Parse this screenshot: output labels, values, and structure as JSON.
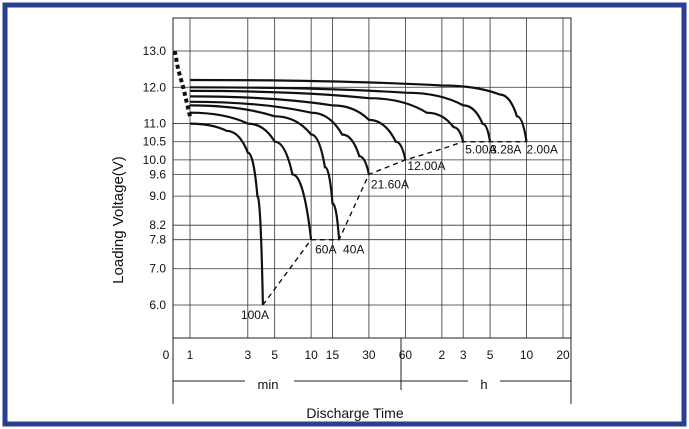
{
  "chart_data": {
    "type": "line",
    "title": "",
    "xlabel": "Discharge Time",
    "ylabel": "Loading  Voltage(V)",
    "x_unit_min": "min",
    "x_unit_h": "h",
    "x_ticks": [
      {
        "label": "0",
        "minutes": 0
      },
      {
        "label": "1",
        "minutes": 1
      },
      {
        "label": "3",
        "minutes": 3
      },
      {
        "label": "5",
        "minutes": 5
      },
      {
        "label": "10",
        "minutes": 10
      },
      {
        "label": "15",
        "minutes": 15
      },
      {
        "label": "30",
        "minutes": 30
      },
      {
        "label": "60",
        "minutes": 60
      },
      {
        "label": "2",
        "minutes": 120
      },
      {
        "label": "3",
        "minutes": 180
      },
      {
        "label": "5",
        "minutes": 300
      },
      {
        "label": "10",
        "minutes": 600
      },
      {
        "label": "20",
        "minutes": 1200
      }
    ],
    "y_ticks": [
      "13.0",
      "12.0",
      "11.0",
      "10.5",
      "10.0",
      "9.6",
      "9.0",
      "8.2",
      "7.8",
      "7.0",
      "6.0"
    ],
    "ylim": [
      5.0,
      13.3
    ],
    "series": [
      {
        "name": "100A",
        "points": [
          [
            1,
            11.0
          ],
          [
            2,
            10.8
          ],
          [
            3,
            10.2
          ],
          [
            3.6,
            9.0
          ],
          [
            4.0,
            6.0
          ]
        ]
      },
      {
        "name": "60A",
        "points": [
          [
            1,
            11.3
          ],
          [
            3,
            11.0
          ],
          [
            5,
            10.5
          ],
          [
            7,
            9.6
          ],
          [
            10,
            7.8
          ]
        ]
      },
      {
        "name": "40A",
        "points": [
          [
            1,
            11.5
          ],
          [
            5,
            11.2
          ],
          [
            10,
            10.7
          ],
          [
            13,
            9.8
          ],
          [
            15,
            8.8
          ],
          [
            17,
            7.8
          ]
        ]
      },
      {
        "name": "21.60A",
        "points": [
          [
            1,
            11.6
          ],
          [
            10,
            11.3
          ],
          [
            18,
            10.7
          ],
          [
            25,
            10.1
          ],
          [
            30,
            9.6
          ]
        ]
      },
      {
        "name": "12.00A",
        "points": [
          [
            1,
            11.75
          ],
          [
            15,
            11.5
          ],
          [
            30,
            11.1
          ],
          [
            50,
            10.5
          ],
          [
            60,
            10.0
          ]
        ]
      },
      {
        "name": "5.00A",
        "points": [
          [
            1,
            11.9
          ],
          [
            30,
            11.7
          ],
          [
            90,
            11.3
          ],
          [
            150,
            10.9
          ],
          [
            180,
            10.5
          ]
        ]
      },
      {
        "name": "3.28A",
        "points": [
          [
            1,
            12.0
          ],
          [
            60,
            11.85
          ],
          [
            180,
            11.5
          ],
          [
            260,
            11.0
          ],
          [
            300,
            10.5
          ]
        ]
      },
      {
        "name": "2.00A",
        "points": [
          [
            1,
            12.2
          ],
          [
            120,
            12.05
          ],
          [
            360,
            11.8
          ],
          [
            500,
            11.2
          ],
          [
            600,
            10.5
          ]
        ]
      }
    ],
    "end_voltage_line": [
      [
        4.0,
        6.0
      ],
      [
        10,
        7.8
      ],
      [
        17,
        7.8
      ],
      [
        30,
        9.6
      ],
      [
        60,
        10.0
      ],
      [
        120,
        10.3
      ],
      [
        180,
        10.5
      ],
      [
        600,
        10.5
      ]
    ],
    "initial_dashes": [
      [
        0.1,
        13.0
      ],
      [
        0.3,
        12.5
      ],
      [
        0.6,
        12.0
      ],
      [
        1,
        11.2
      ]
    ],
    "grid": true,
    "legend": "none"
  }
}
